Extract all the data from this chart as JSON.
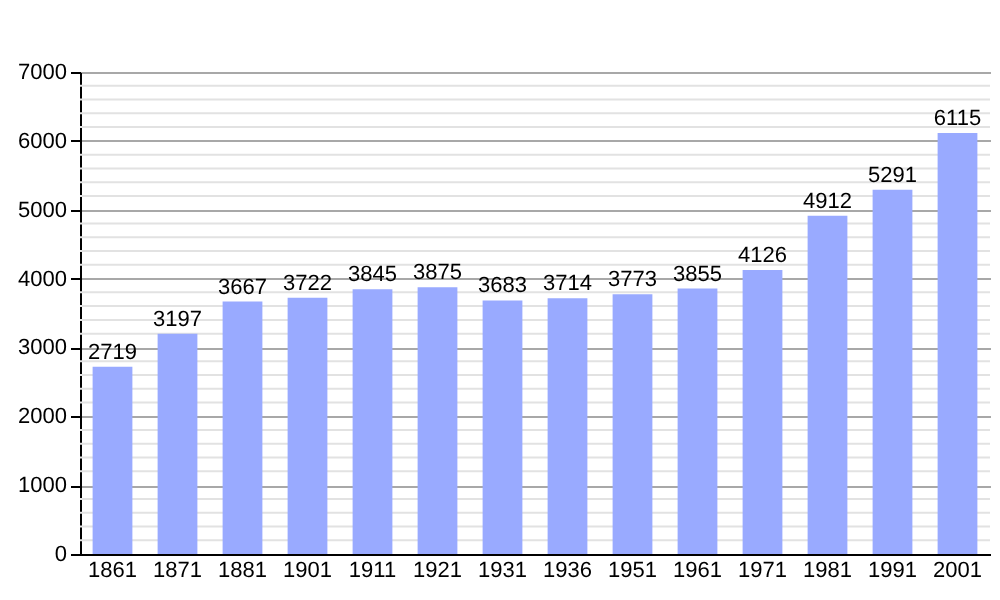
{
  "chart_data": {
    "type": "bar",
    "categories": [
      "1861",
      "1871",
      "1881",
      "1901",
      "1911",
      "1921",
      "1931",
      "1936",
      "1951",
      "1961",
      "1971",
      "1981",
      "1991",
      "2001"
    ],
    "values": [
      2719,
      3197,
      3667,
      3722,
      3845,
      3875,
      3683,
      3714,
      3773,
      3855,
      4126,
      4912,
      5291,
      6115
    ],
    "color": "#99aaff",
    "data_labels": true,
    "grid": "y",
    "ylim": [
      0,
      7000
    ],
    "yticks": [
      0,
      {
        "value": 200,
        "label": null
      },
      {
        "value": 400,
        "label": null
      },
      {
        "value": 600,
        "label": null
      },
      {
        "value": 800,
        "label": null
      },
      1000,
      {
        "value": 1200,
        "label": null
      },
      {
        "value": 1400,
        "label": null
      },
      {
        "value": 1600,
        "label": null
      },
      {
        "value": 1800,
        "label": null
      },
      2000,
      {
        "value": 2200,
        "label": null
      },
      {
        "value": 2400,
        "label": null
      },
      {
        "value": 2600,
        "label": null
      },
      {
        "value": 2800,
        "label": null
      },
      3000,
      {
        "value": 3200,
        "label": null
      },
      {
        "value": 3400,
        "label": null
      },
      {
        "value": 3600,
        "label": null
      },
      {
        "value": 3800,
        "label": null
      },
      4000,
      {
        "value": 4200,
        "label": null
      },
      {
        "value": 4400,
        "label": null
      },
      {
        "value": 4600,
        "label": null
      },
      {
        "value": 4800,
        "label": null
      },
      5000,
      {
        "value": 5200,
        "label": null
      },
      {
        "value": 5400,
        "label": null
      },
      {
        "value": 5600,
        "label": null
      },
      {
        "value": 5800,
        "label": null
      },
      6000,
      {
        "value": 6200,
        "label": null
      },
      {
        "value": 6400,
        "label": null
      },
      {
        "value": 6600,
        "label": null
      },
      {
        "value": 6800,
        "label": null
      },
      7000
    ]
  }
}
